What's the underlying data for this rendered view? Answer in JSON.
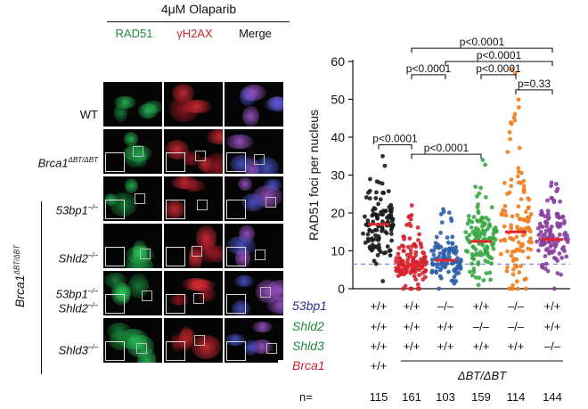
{
  "figure": {
    "treatment": "4μM Olaparib",
    "channels": [
      {
        "label": "RAD51",
        "color": "#1f8a3c"
      },
      {
        "label": "γH2AX",
        "color": "#c4262e"
      },
      {
        "label": "Merge",
        "color": "#111111"
      }
    ],
    "rows": [
      {
        "label": "WT",
        "italic": false
      },
      {
        "label": "Brca1",
        "sup": "ΔBT/ΔBT",
        "italic": true
      },
      {
        "label": "53bp1",
        "sup": "–/–",
        "italic": true
      },
      {
        "label": "Shld2",
        "sup": "–/–",
        "italic": true
      },
      {
        "label": "53bp1",
        "sup": "–/–",
        "label2": "Shld2",
        "sup2": "–/–",
        "italic": true
      },
      {
        "label": "Shld3",
        "sup": "–/–",
        "italic": true
      }
    ],
    "group_label": {
      "main": "Brca1",
      "sup": "ΔBT/ΔBT"
    }
  },
  "chart_data": {
    "type": "scatter",
    "ylabel": "RAD51 foci per nucleus",
    "ylim": [
      0,
      60
    ],
    "yticks": [
      0,
      10,
      20,
      30,
      40,
      50,
      60
    ],
    "dashed_baseline": 6.5,
    "series": [
      {
        "color": "#1a1a1a",
        "mean": 17,
        "min": 2,
        "max": 35,
        "n": 115
      },
      {
        "color": "#d6232f",
        "mean": 6,
        "min": 0,
        "max": 22,
        "n": 161
      },
      {
        "color": "#2f5fa8",
        "mean": 7.5,
        "min": 0,
        "max": 21,
        "n": 103
      },
      {
        "color": "#3aa845",
        "mean": 12.5,
        "min": 1,
        "max": 34,
        "n": 159
      },
      {
        "color": "#ef7d1f",
        "mean": 15,
        "min": 0,
        "max": 58,
        "n": 114
      },
      {
        "color": "#8a3fa0",
        "mean": 13,
        "min": 0,
        "max": 28,
        "n": 144
      }
    ],
    "significance": [
      {
        "from": 1,
        "to": 5,
        "y": 63.5,
        "label": "p<0.0001"
      },
      {
        "from": 2,
        "to": 5,
        "y": 60.0,
        "label": "p<0.0001"
      },
      {
        "from": 1,
        "to": 2,
        "y": 56.5,
        "label": "p<0.0001"
      },
      {
        "from": 3,
        "to": 4,
        "y": 56.5,
        "label": "p<0.0001"
      },
      {
        "from": 4,
        "to": 5,
        "y": 52.5,
        "label": "p=0.33"
      },
      {
        "from": 1,
        "to": 3,
        "y": 35.5,
        "label": "p<0.0001"
      },
      {
        "from": 0,
        "to": 1,
        "y": 38.0,
        "label": "p<0.0001"
      }
    ],
    "genotype_rows": [
      {
        "label": "53bp1",
        "color": "#2e3192",
        "values": [
          "+/+",
          "+/+",
          "–/–",
          "+/+",
          "–/–",
          "+/+"
        ]
      },
      {
        "label": "Shld2",
        "color": "#1f8a3c",
        "values": [
          "+/+",
          "+/+",
          "+/+",
          "–/–",
          "–/–",
          "+/+"
        ]
      },
      {
        "label": "Shld3",
        "color": "#1f8a3c",
        "values": [
          "+/+",
          "+/+",
          "+/+",
          "+/+",
          "+/+",
          "–/–"
        ]
      },
      {
        "label": "Brca1",
        "color": "#c4262e",
        "values": [
          "+/+"
        ]
      }
    ],
    "brca1_group_label": "ΔBT/ΔBT",
    "n_label": "n=",
    "n_values": [
      "115",
      "161",
      "103",
      "159",
      "114",
      "144"
    ]
  }
}
